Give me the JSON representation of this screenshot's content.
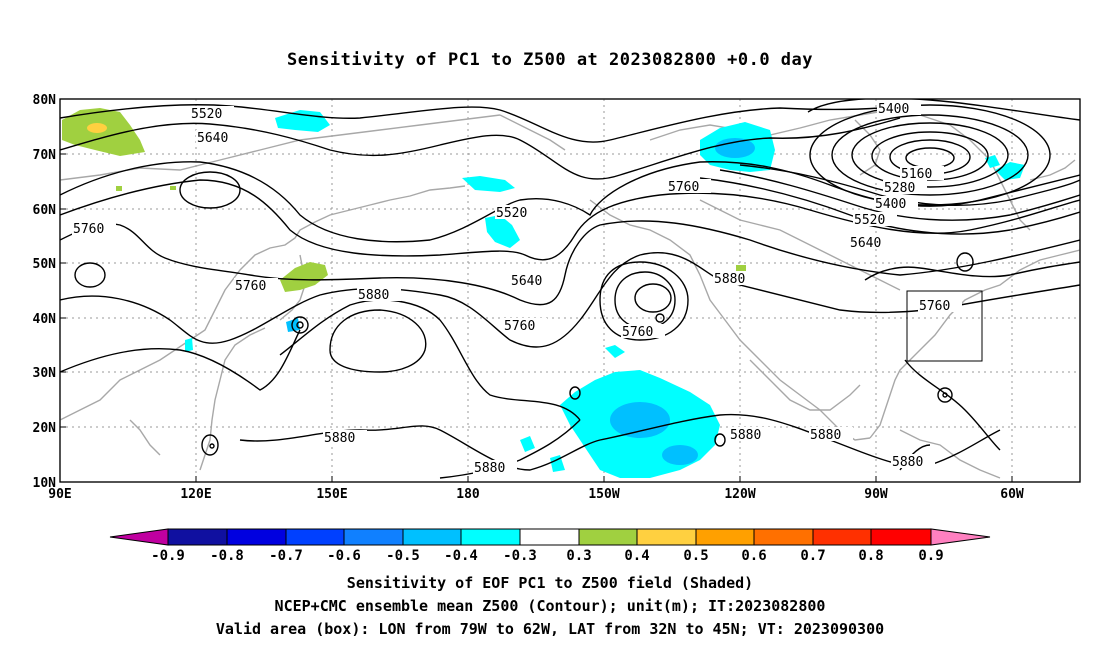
{
  "title": "Sensitivity of PC1 to Z500 at 2023082800 +0.0 day",
  "lat_labels": [
    "80N",
    "70N",
    "60N",
    "50N",
    "40N",
    "30N",
    "20N",
    "10N"
  ],
  "lon_labels": [
    "90E",
    "120E",
    "150E",
    "180",
    "150W",
    "120W",
    "90W",
    "60W"
  ],
  "contour_labels": {
    "c5520a": "5520",
    "c5640a": "5640",
    "c5400a": "5400",
    "c5160": "5160",
    "c5280": "5280",
    "c5400b": "5400",
    "c5520b": "5520",
    "c5640b": "5640",
    "c5760a": "5760",
    "c5760b": "5760",
    "c5760c": "5760",
    "c5880a": "5880",
    "c5520c": "5520",
    "c5640c": "5640",
    "c5760d": "5760",
    "c5760e": "5760",
    "c5880b": "5880",
    "c5880c": "5880",
    "c5880d": "5880",
    "c5880e": "5880",
    "c5880f": "5880",
    "c5760f": "5760",
    "c5880g": "5880"
  },
  "colorbar": {
    "ticks": [
      "-0.9",
      "-0.8",
      "-0.7",
      "-0.6",
      "-0.5",
      "-0.4",
      "-0.3",
      "0.3",
      "0.4",
      "0.5",
      "0.6",
      "0.7",
      "0.8",
      "0.9"
    ],
    "colors": [
      "#c000a0",
      "#1010a0",
      "#0000e0",
      "#0040ff",
      "#1080ff",
      "#00c0ff",
      "#00ffff",
      "#ffffff",
      "#a0d040",
      "#ffd040",
      "#ffa000",
      "#ff7000",
      "#ff3000",
      "#ff0000",
      "#ff80c0"
    ]
  },
  "box": {
    "lon_from": "79W",
    "lon_to": "62W",
    "lat_from": "32N",
    "lat_to": "45N"
  },
  "captions": {
    "line1": "Sensitivity of EOF PC1 to Z500 field (Shaded)",
    "line2": "NCEP+CMC ensemble mean Z500 (Contour); unit(m); IT:2023082800",
    "line3": "Valid area (box): LON from 79W to 62W, LAT from 32N to 45N; VT: 2023090300"
  }
}
